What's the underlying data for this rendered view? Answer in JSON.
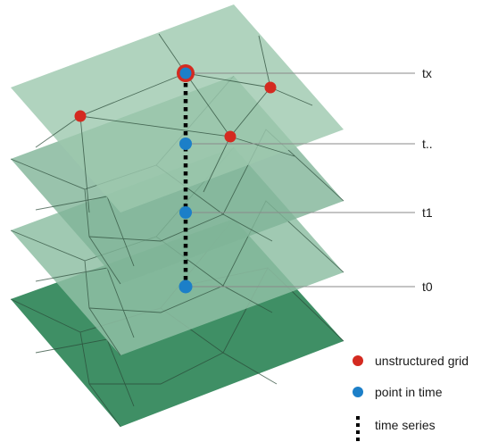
{
  "layers": [
    {
      "label": "t0",
      "color": "#3f8f65",
      "opacity": 1
    },
    {
      "label": "t1",
      "color": "#8fbfa4",
      "opacity": 0.85
    },
    {
      "label": "t..",
      "color": "#7fb497",
      "opacity": 0.8
    },
    {
      "label": "tx",
      "color": "#9cc8ae",
      "opacity": 0.8
    }
  ],
  "legend": {
    "unstructured_grid": "unstructured grid",
    "point_in_time": "point in time",
    "time_series": "time series"
  },
  "colors": {
    "grid_node": "#d42a20",
    "time_point": "#1c7fc8",
    "time_series": "#000000",
    "mesh_line": "#2a4a38",
    "leader_line": "#8a8a8a"
  }
}
